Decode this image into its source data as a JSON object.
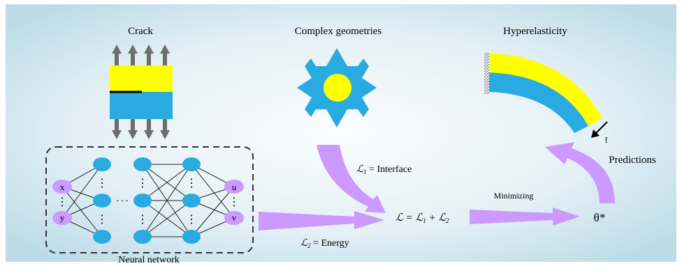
{
  "labels": {
    "crack": "Crack",
    "geometries": "Complex geometries",
    "hyperelasticity": "Hyperelasticity",
    "network": "Neural network",
    "predictions": "Predictions",
    "minimizing": "Minimizing",
    "theta": "θ*",
    "traction": "t̄"
  },
  "equations": {
    "l1_sym": "ℒ",
    "l1_sub": "1",
    "l1_text": " = Interface",
    "l2_sym": "ℒ",
    "l2_sub": "2",
    "l2_text": " = Energy",
    "total": "ℒ = ℒ",
    "total_sub1": "1",
    "total_plus": " + ℒ",
    "total_sub2": "2"
  },
  "network": {
    "inputs": [
      "x",
      "y"
    ],
    "outputs": [
      "u",
      "v"
    ],
    "vdots": "⋮",
    "hdots": "• • •"
  },
  "colors": {
    "background_center": "#fbfdfe",
    "background_edge": "#bcdbe7",
    "cyan": "#29abe2",
    "yellow": "#ffff00",
    "purple": "#cc99ff",
    "arrow_gray": "#6d6d6d"
  }
}
